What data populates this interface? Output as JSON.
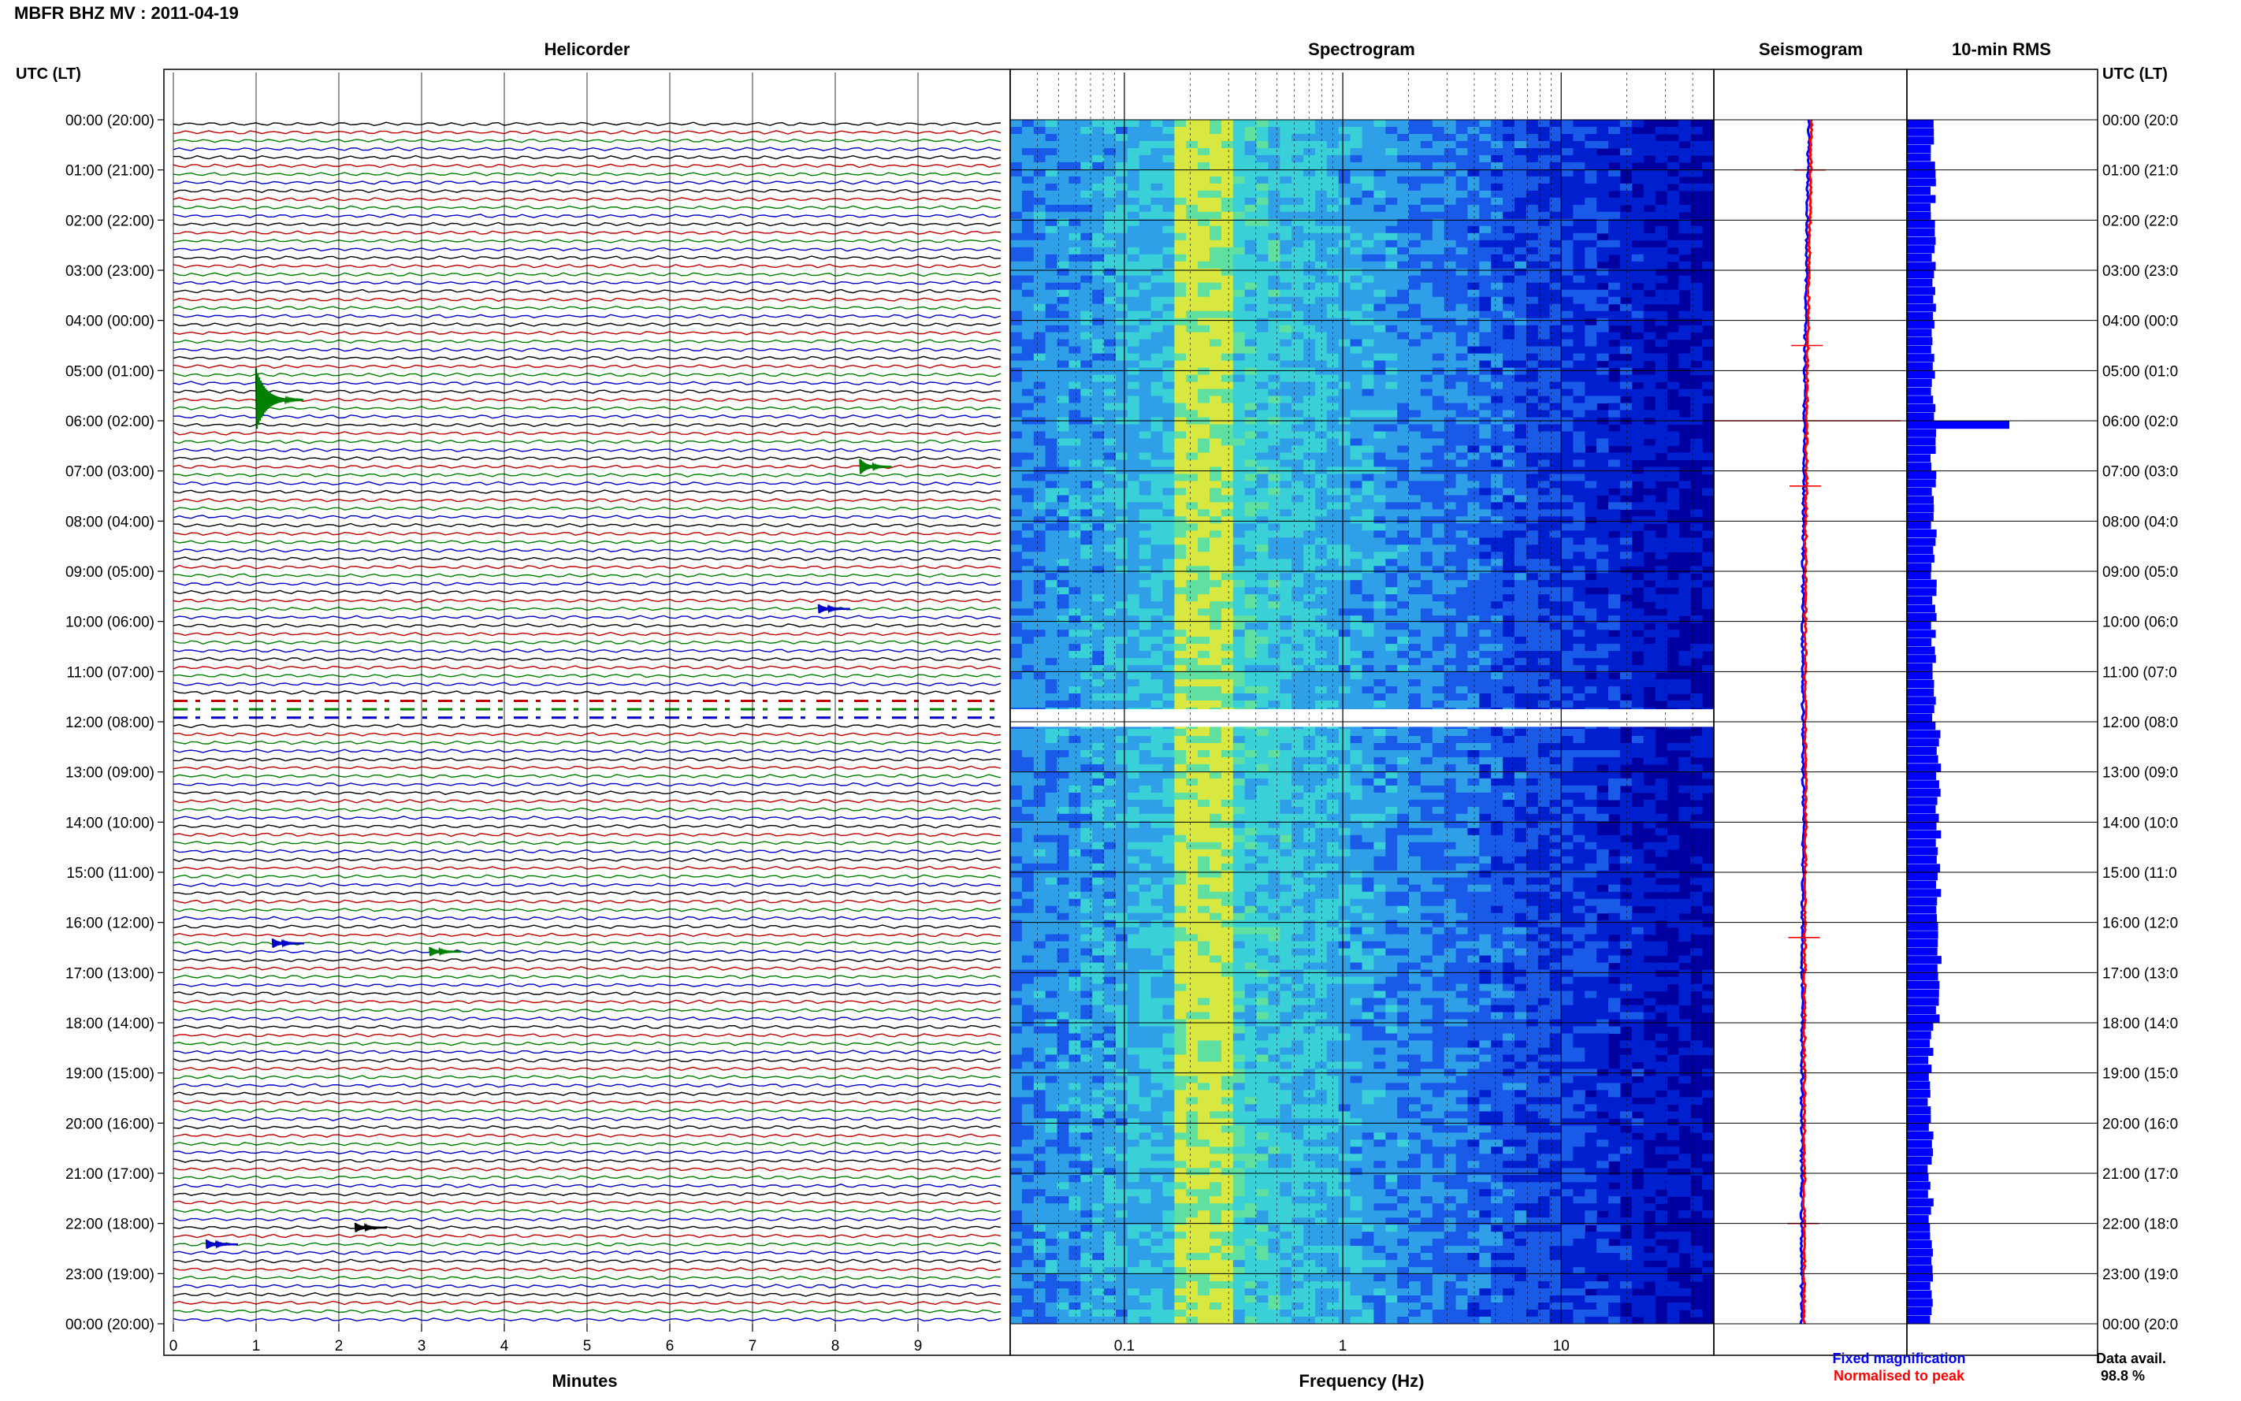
{
  "header": {
    "title": "MBFR BHZ MV : 2011-04-19"
  },
  "panels": {
    "helicorder": "Helicorder",
    "spectrogram": "Spectrogram",
    "seismogram": "Seismogram",
    "rms": "10-min RMS"
  },
  "axis_left_label": "UTC (LT)",
  "axis_right_label": "UTC (LT)",
  "time_labels": [
    "00:00 (20:00)",
    "01:00 (21:00)",
    "02:00 (22:00)",
    "03:00 (23:00)",
    "04:00 (00:00)",
    "05:00 (01:00)",
    "06:00 (02:00)",
    "07:00 (03:00)",
    "08:00 (04:00)",
    "09:00 (05:00)",
    "10:00 (06:00)",
    "11:00 (07:00)",
    "12:00 (08:00)",
    "13:00 (09:00)",
    "14:00 (10:00)",
    "15:00 (11:00)",
    "16:00 (12:00)",
    "17:00 (13:00)",
    "18:00 (14:00)",
    "19:00 (15:00)",
    "20:00 (16:00)",
    "21:00 (17:00)",
    "22:00 (18:00)",
    "23:00 (19:00)",
    "00:00 (20:00)"
  ],
  "time_labels_right": [
    "00:00 (20:0",
    "01:00 (21:0",
    "02:00 (22:0",
    "03:00 (23:0",
    "04:00 (00:0",
    "05:00 (01:0",
    "06:00 (02:0",
    "07:00 (03:0",
    "08:00 (04:0",
    "09:00 (05:0",
    "10:00 (06:0",
    "11:00 (07:0",
    "12:00 (08:0",
    "13:00 (09:0",
    "14:00 (10:0",
    "15:00 (11:0",
    "16:00 (12:0",
    "17:00 (13:0",
    "18:00 (14:0",
    "19:00 (15:0",
    "20:00 (16:0",
    "21:00 (17:0",
    "22:00 (18:0",
    "23:00 (19:0",
    "00:00 (20:0"
  ],
  "chart_data": {
    "type": "helicorder-spectrogram",
    "helicorder": {
      "xlabel": "Minutes",
      "x_ticks": [
        "0",
        "1",
        "2",
        "3",
        "4",
        "5",
        "6",
        "7",
        "8",
        "9"
      ],
      "x_range": [
        0,
        10
      ],
      "lines_per_hour": 6,
      "trace_colors": [
        "#000000",
        "#c00000",
        "#008000",
        "#0000c8"
      ],
      "gap_hour": [
        11.5,
        12.0
      ],
      "events": [
        {
          "hour": 5.5,
          "minute": 1.0,
          "amplitude": "large",
          "color": "#008000"
        },
        {
          "hour": 6.83,
          "minute": 8.3,
          "amplitude": "medium",
          "color": "#008000"
        },
        {
          "hour": 9.67,
          "minute": 7.8,
          "amplitude": "small",
          "color": "#0000c8"
        },
        {
          "hour": 16.33,
          "minute": 1.2,
          "amplitude": "small",
          "color": "#0000c8"
        },
        {
          "hour": 16.5,
          "minute": 3.1,
          "amplitude": "small",
          "color": "#008000"
        },
        {
          "hour": 22.0,
          "minute": 2.2,
          "amplitude": "small",
          "color": "#000000"
        },
        {
          "hour": 22.33,
          "minute": 0.4,
          "amplitude": "small",
          "color": "#0000c8"
        }
      ]
    },
    "spectrogram": {
      "xlabel": "Frequency (Hz)",
      "x_scale": "log",
      "x_ticks": [
        "0.1",
        "1",
        "10"
      ],
      "x_range": [
        0.03,
        50
      ],
      "peak_band_hz": [
        0.18,
        0.3
      ],
      "gap_hour": [
        11.75,
        12.1
      ],
      "colors": [
        "#0000a0",
        "#0020d0",
        "#1a5ae8",
        "#2fa0e8",
        "#3ad0d8",
        "#60e0a0",
        "#d8e840"
      ]
    },
    "seismogram": {
      "fixed_label": "Fixed magnification",
      "normalised_label": "Normalised to peak",
      "fixed_color": "#0000ff",
      "normalised_color": "#ff0000",
      "spikes_hour": [
        1.0,
        4.5,
        6.0,
        7.3,
        16.3,
        22.0
      ]
    },
    "rms": {
      "interval_min": 10,
      "peak_hour": 6.0,
      "bar_color": "#0000ff",
      "footer_label": "Data avail.",
      "availability": "98.8 %"
    }
  }
}
